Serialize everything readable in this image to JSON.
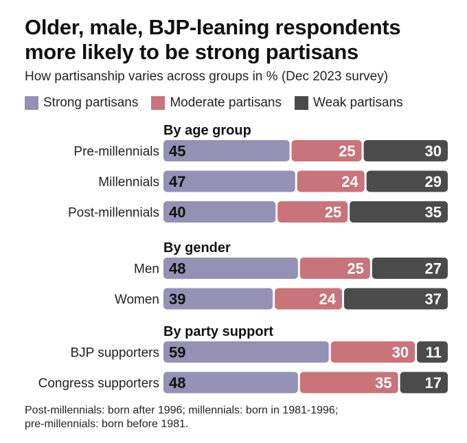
{
  "colors": {
    "strong": "#9491b5",
    "moderate": "#c9737a",
    "weak": "#4b4b4b",
    "strong_label": "#111111",
    "other_label": "#ffffff"
  },
  "title_line1": "Older, male, BJP-leaning respondents",
  "title_line2": "more likely to be strong partisans",
  "subtitle": "How partisanship varies across groups in % (Dec 2023 survey)",
  "legend": [
    {
      "key": "strong",
      "label": "Strong partisans"
    },
    {
      "key": "moderate",
      "label": "Moderate partisans"
    },
    {
      "key": "weak",
      "label": "Weak partisans"
    }
  ],
  "footnote_line1": "Post-millennials: born after 1996; millennials: born in 1981-1996;",
  "footnote_line2": "pre-millennials: born before 1981.",
  "chart_data": {
    "type": "bar",
    "stacked": true,
    "orientation": "horizontal",
    "series_names": [
      "Strong partisans",
      "Moderate partisans",
      "Weak partisans"
    ],
    "groups": [
      {
        "heading": "By age group",
        "rows": [
          {
            "label": "Pre-millennials",
            "values": [
              45,
              25,
              30
            ]
          },
          {
            "label": "Millennials",
            "values": [
              47,
              24,
              29
            ]
          },
          {
            "label": "Post-millennials",
            "values": [
              40,
              25,
              35
            ]
          }
        ]
      },
      {
        "heading": "By gender",
        "rows": [
          {
            "label": "Men",
            "values": [
              48,
              25,
              27
            ]
          },
          {
            "label": "Women",
            "values": [
              39,
              24,
              37
            ]
          }
        ]
      },
      {
        "heading": "By party support",
        "rows": [
          {
            "label": "BJP supporters",
            "values": [
              59,
              30,
              11
            ]
          },
          {
            "label": "Congress supporters",
            "values": [
              48,
              35,
              17
            ]
          }
        ]
      }
    ]
  }
}
